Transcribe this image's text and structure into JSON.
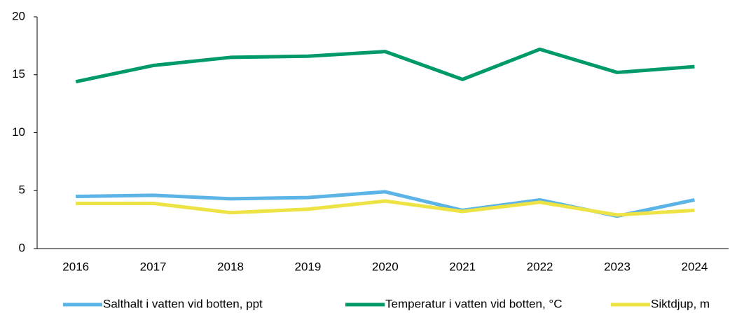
{
  "chart_data": {
    "type": "line",
    "categories": [
      "2016",
      "2017",
      "2018",
      "2019",
      "2020",
      "2021",
      "2022",
      "2023",
      "2024"
    ],
    "series": [
      {
        "name": "Salthalt i vatten vid botten, ppt",
        "color": "#5bb4e5",
        "values": [
          4.5,
          4.6,
          4.3,
          4.4,
          4.9,
          3.3,
          4.2,
          2.8,
          4.2
        ]
      },
      {
        "name": "Temperatur i vatten vid botten, °C",
        "color": "#009a6a",
        "values": [
          14.4,
          15.8,
          16.5,
          16.6,
          17.0,
          14.6,
          17.2,
          15.2,
          15.7
        ]
      },
      {
        "name": "Siktdjup, m",
        "color": "#ede344",
        "values": [
          3.9,
          3.9,
          3.1,
          3.4,
          4.1,
          3.2,
          4.0,
          2.9,
          3.3
        ]
      }
    ],
    "ylim": [
      0,
      20
    ],
    "yticks": [
      0,
      5,
      10,
      15,
      20
    ],
    "grid": false,
    "legend": "bottom"
  }
}
